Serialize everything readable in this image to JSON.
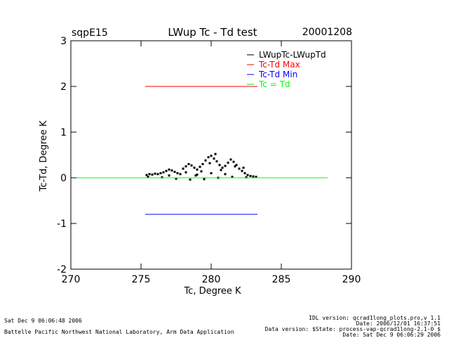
{
  "header": {
    "site": "sqpE15",
    "title": "LWup Tc - Td test",
    "date": "20001208"
  },
  "chart_data": {
    "type": "scatter",
    "title": "LWup Tc - Td test",
    "xlabel": "Tc, Degree K",
    "ylabel": "Tc-Td, Degree K",
    "xlim": [
      270,
      290
    ],
    "ylim": [
      -2,
      3
    ],
    "xticks": [
      270,
      275,
      280,
      285,
      290
    ],
    "yticks": [
      -2,
      -1,
      0,
      1,
      2,
      3
    ],
    "grid": false,
    "legend_position": "top-right",
    "series": [
      {
        "name": "LWupTc-LWupTd",
        "color": "#000000",
        "kind": "points",
        "points": [
          [
            275.4,
            0.06
          ],
          [
            275.6,
            0.08
          ],
          [
            275.8,
            0.07
          ],
          [
            276.0,
            0.09
          ],
          [
            276.2,
            0.08
          ],
          [
            276.4,
            0.1
          ],
          [
            276.6,
            0.12
          ],
          [
            276.8,
            0.15
          ],
          [
            277.0,
            0.18
          ],
          [
            277.2,
            0.16
          ],
          [
            277.4,
            0.13
          ],
          [
            277.6,
            0.1
          ],
          [
            277.8,
            0.08
          ],
          [
            278.0,
            0.2
          ],
          [
            278.2,
            0.25
          ],
          [
            278.4,
            0.3
          ],
          [
            278.6,
            0.27
          ],
          [
            278.8,
            0.22
          ],
          [
            279.0,
            0.18
          ],
          [
            279.2,
            0.24
          ],
          [
            279.4,
            0.3
          ],
          [
            279.6,
            0.38
          ],
          [
            279.8,
            0.45
          ],
          [
            280.0,
            0.48
          ],
          [
            280.2,
            0.42
          ],
          [
            280.4,
            0.36
          ],
          [
            280.6,
            0.28
          ],
          [
            280.8,
            0.22
          ],
          [
            281.0,
            0.26
          ],
          [
            281.2,
            0.33
          ],
          [
            281.4,
            0.4
          ],
          [
            281.6,
            0.35
          ],
          [
            281.8,
            0.28
          ],
          [
            282.0,
            0.2
          ],
          [
            282.2,
            0.15
          ],
          [
            282.4,
            0.1
          ],
          [
            282.6,
            0.06
          ],
          [
            282.8,
            0.04
          ],
          [
            283.0,
            0.03
          ],
          [
            283.2,
            0.02
          ],
          [
            275.5,
            0.02
          ],
          [
            276.5,
            0.01
          ],
          [
            277.5,
            -0.02
          ],
          [
            278.5,
            -0.04
          ],
          [
            279.5,
            -0.03
          ],
          [
            280.5,
            0.0
          ],
          [
            281.5,
            0.02
          ],
          [
            282.5,
            0.01
          ],
          [
            277.0,
            0.05
          ],
          [
            279.0,
            0.07
          ],
          [
            280.0,
            0.1
          ],
          [
            281.0,
            0.08
          ],
          [
            280.7,
            0.17
          ],
          [
            279.3,
            0.14
          ],
          [
            278.2,
            0.12
          ],
          [
            280.3,
            0.52
          ],
          [
            281.7,
            0.25
          ],
          [
            282.3,
            0.22
          ],
          [
            279.9,
            0.32
          ],
          [
            278.9,
            0.05
          ]
        ]
      },
      {
        "name": "Tc-Td Max",
        "color": "#ff0000",
        "kind": "line",
        "x": [
          275.3,
          283.3
        ],
        "y": [
          2.0,
          2.0
        ]
      },
      {
        "name": "Tc-Td Min",
        "color": "#0000ff",
        "kind": "line",
        "x": [
          275.3,
          283.3
        ],
        "y": [
          -0.8,
          -0.8
        ]
      },
      {
        "name": "Tc = Td",
        "color": "#00ff00",
        "kind": "line",
        "x": [
          270,
          288.3
        ],
        "y": [
          0.0,
          0.0
        ]
      }
    ]
  },
  "footer": {
    "left_line1": "Sat Dec  9 06:06:48 2006",
    "left_line2": "Battelle Pacific Northwest National Laboratory, Arm Data Application",
    "right_line1": "IDL version: qcrad1long_plots.pro,v 1.1",
    "right_line2": "Date: 2006/12/01 16:37:51",
    "right_line3": "Data version: $State: process-vap-qcrad1long-2.1-0 $",
    "right_line4": "Date: Sat Dec  9 06:06:29 2006"
  }
}
